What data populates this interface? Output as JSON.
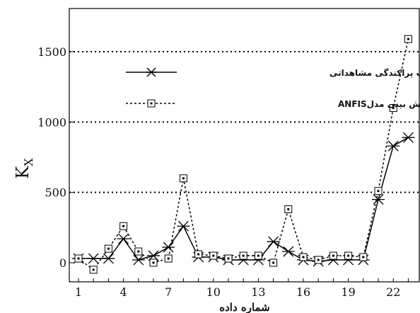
{
  "chart_data": {
    "type": "line",
    "ylabel": "K",
    "ylabel_subscript": "X",
    "xlabel": "شماره داده",
    "xticks": [
      "1",
      "4",
      "7",
      "10",
      "13",
      "16",
      "19",
      "22"
    ],
    "yticks": [
      "0",
      "500",
      "1000",
      "1500"
    ],
    "ylim": [
      -60,
      1800
    ],
    "xlim": [
      0.6,
      23.6
    ],
    "grid": "horizontal dotted at 500, 1000, 1500",
    "legend_position": "upper-left",
    "x": [
      1,
      2,
      3,
      4,
      5,
      6,
      7,
      8,
      9,
      10,
      11,
      12,
      13,
      14,
      15,
      16,
      17,
      18,
      19,
      20,
      21,
      22,
      23
    ],
    "series": [
      {
        "name": "ضریب پراکندگی مشاهداتی",
        "style": "solid",
        "marker": "asterisk",
        "color": "#000000",
        "values": [
          30,
          30,
          30,
          170,
          20,
          50,
          110,
          260,
          40,
          40,
          20,
          20,
          20,
          150,
          80,
          20,
          10,
          20,
          20,
          20,
          450,
          830,
          890
        ]
      },
      {
        "name": "ضریب پراکندگی پیش بینی مدلANFIS",
        "style": "dotted",
        "marker": "dotted-square",
        "color": "#000000",
        "values": [
          30,
          -50,
          100,
          260,
          80,
          0,
          30,
          600,
          60,
          50,
          30,
          50,
          50,
          0,
          380,
          40,
          20,
          50,
          50,
          40,
          510,
          1100,
          1590
        ]
      }
    ]
  }
}
